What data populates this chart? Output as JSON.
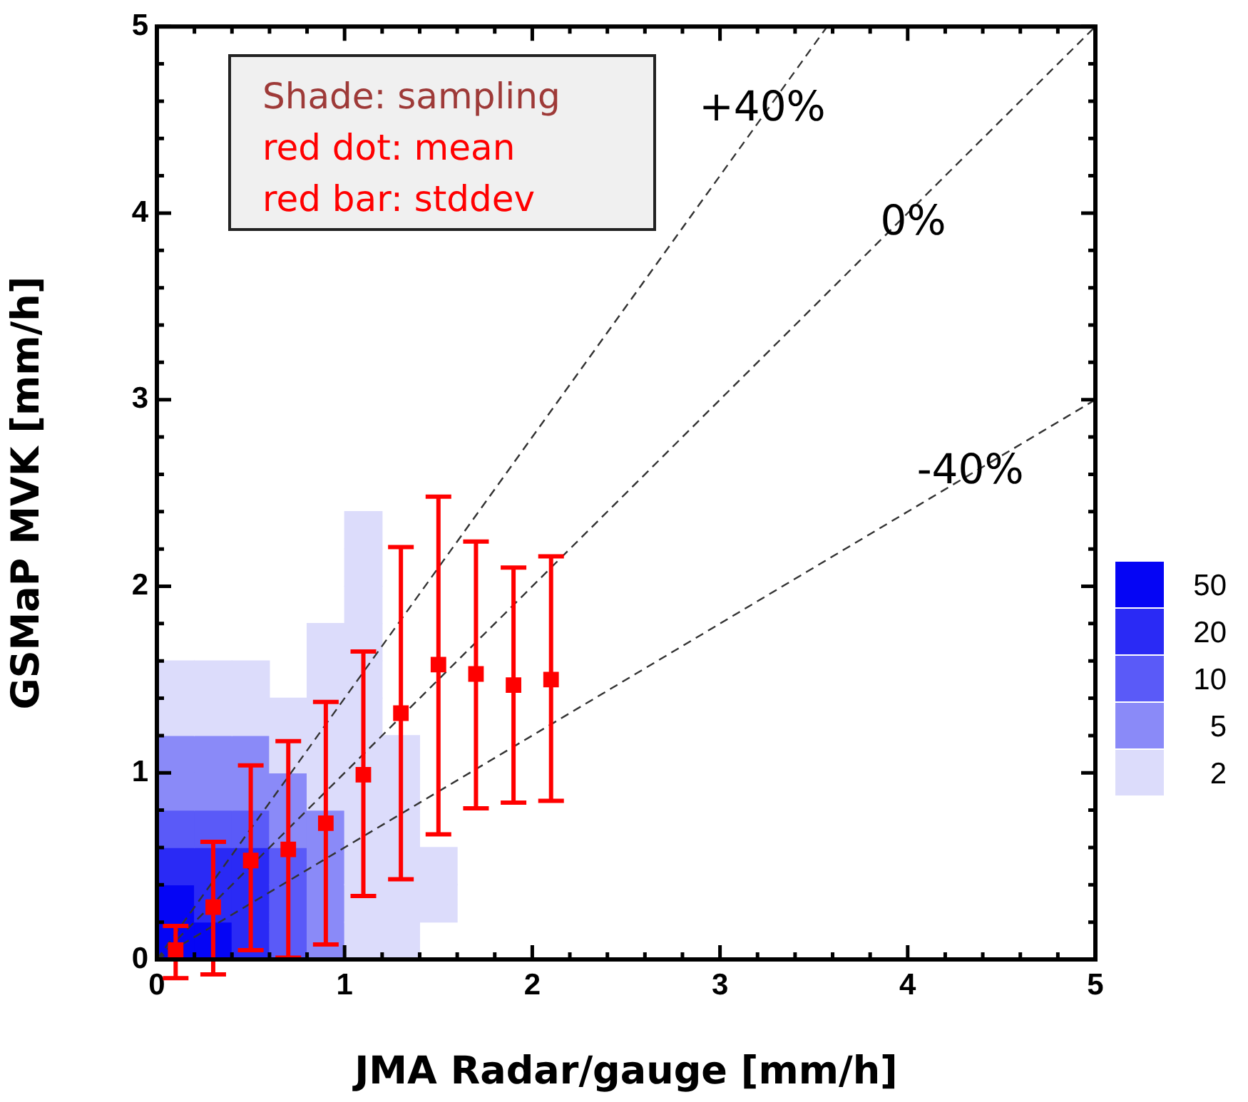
{
  "chart_data": {
    "type": "scatter",
    "xlabel": "JMA Radar/gauge [mm/h]",
    "ylabel": "GSMaP MVK [mm/h]",
    "xlim": [
      0,
      5
    ],
    "ylim": [
      0,
      5
    ],
    "xticks": [
      0,
      1,
      2,
      3,
      4,
      5
    ],
    "yticks": [
      0,
      1,
      2,
      3,
      4,
      5
    ],
    "grid": false,
    "legend": "right",
    "marker": "square",
    "series": [
      {
        "type": "scatter",
        "name": "2",
        "color": "#dcdcfb",
        "marker": "square",
        "x": [
          1.1,
          1.1,
          1.1,
          0.9,
          1.1,
          0.1,
          0.3,
          0.5,
          0.9,
          1.1,
          0.1,
          0.3,
          0.5,
          0.7,
          0.9,
          1.1,
          0.7,
          0.9,
          1.1,
          1.3,
          0.9,
          1.1,
          1.3,
          1.1,
          1.3,
          1.1,
          1.3,
          1.5,
          1.1,
          1.3,
          1.5,
          1.1,
          1.3
        ],
        "values": [
          2.3,
          2.1,
          1.9,
          1.7,
          1.7,
          1.5,
          1.5,
          1.5,
          1.5,
          1.5,
          1.3,
          1.3,
          1.3,
          1.3,
          1.3,
          1.3,
          1.1,
          1.1,
          1.1,
          1.1,
          0.9,
          0.9,
          0.9,
          0.7,
          0.7,
          0.5,
          0.5,
          0.5,
          0.3,
          0.3,
          0.3,
          0.1,
          0.1
        ]
      },
      {
        "type": "scatter",
        "name": "5",
        "color": "#8a8af8",
        "marker": "square",
        "x": [
          0.1,
          0.3,
          0.5,
          0.1,
          0.3,
          0.5,
          0.7,
          0.7,
          0.9,
          0.9,
          0.9,
          0.9
        ],
        "values": [
          1.1,
          1.1,
          1.1,
          0.9,
          0.9,
          0.9,
          0.9,
          0.7,
          0.7,
          0.5,
          0.3,
          0.1
        ]
      },
      {
        "type": "scatter",
        "name": "10",
        "color": "#5a5af8",
        "marker": "square",
        "x": [
          0.1,
          0.3,
          0.5,
          0.7,
          0.7,
          0.7
        ],
        "values": [
          0.7,
          0.7,
          0.7,
          0.5,
          0.3,
          0.1
        ]
      },
      {
        "type": "scatter",
        "name": "20",
        "color": "#2a2af5",
        "marker": "square",
        "x": [
          0.1,
          0.3,
          0.5,
          0.3,
          0.5,
          0.5
        ],
        "values": [
          0.5,
          0.5,
          0.5,
          0.3,
          0.3,
          0.1
        ]
      },
      {
        "type": "scatter",
        "name": "50",
        "color": "#0505f5",
        "marker": "square",
        "x": [
          0.1,
          0.1,
          0.3
        ],
        "values": [
          0.3,
          0.1,
          0.1
        ]
      },
      {
        "type": "scatter",
        "color": "#ff0000",
        "x": [
          0.1,
          0.3,
          0.5,
          0.7,
          0.9,
          1.1,
          1.3,
          1.5,
          1.7,
          1.9,
          2.1
        ],
        "values": [
          0.05,
          0.28,
          0.53,
          0.59,
          0.73,
          0.99,
          1.32,
          1.58,
          1.53,
          1.47,
          1.5
        ],
        "errors": [
          [
            -0.1,
            0.18
          ],
          [
            -0.08,
            0.63
          ],
          [
            0.05,
            1.04
          ],
          [
            0.01,
            1.17
          ],
          [
            0.08,
            1.38
          ],
          [
            0.34,
            1.65
          ],
          [
            0.43,
            2.21
          ],
          [
            0.67,
            2.48
          ],
          [
            0.81,
            2.24
          ],
          [
            0.84,
            2.1
          ],
          [
            0.85,
            2.16
          ]
        ]
      },
      {
        "type": "line",
        "name": "+40%",
        "color": "#333333",
        "line_style": "dashed",
        "marker": "none",
        "x": [
          0,
          3.571
        ],
        "values": [
          0,
          5
        ]
      },
      {
        "type": "line",
        "name": "0%",
        "color": "#333333",
        "line_style": "dashed",
        "marker": "none",
        "x": [
          0,
          5
        ],
        "values": [
          0,
          5
        ]
      },
      {
        "type": "line",
        "name": "-40%",
        "color": "#333333",
        "line_style": "dashed",
        "marker": "none",
        "x": [
          0,
          5
        ],
        "values": [
          0,
          3
        ]
      }
    ],
    "annotations": [
      "Shade: sampling",
      "red dot: mean",
      "red bar: stddev"
    ]
  }
}
